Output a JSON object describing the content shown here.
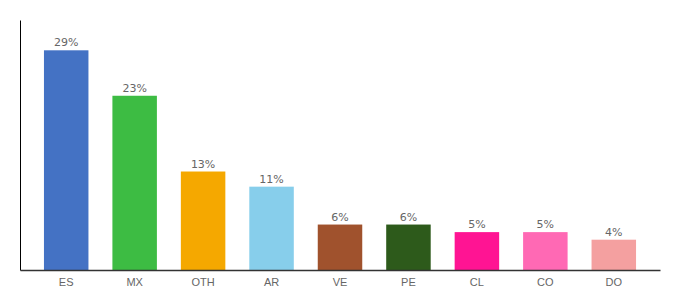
{
  "chart_data": {
    "type": "bar",
    "categories": [
      "ES",
      "MX",
      "OTH",
      "AR",
      "VE",
      "PE",
      "CL",
      "CO",
      "DO"
    ],
    "values": [
      29,
      23,
      13,
      11,
      6,
      6,
      5,
      5,
      4
    ],
    "value_labels": [
      "29%",
      "23%",
      "13%",
      "11%",
      "6%",
      "6%",
      "5%",
      "5%",
      "4%"
    ],
    "colors": [
      "#4472c4",
      "#3dbc43",
      "#f5a800",
      "#87ceeb",
      "#a0522d",
      "#2d5a1b",
      "#ff1493",
      "#ff69b4",
      "#f4a0a0"
    ],
    "ylim": [
      0,
      33
    ],
    "data_labels": true,
    "tick_labels": "x"
  }
}
